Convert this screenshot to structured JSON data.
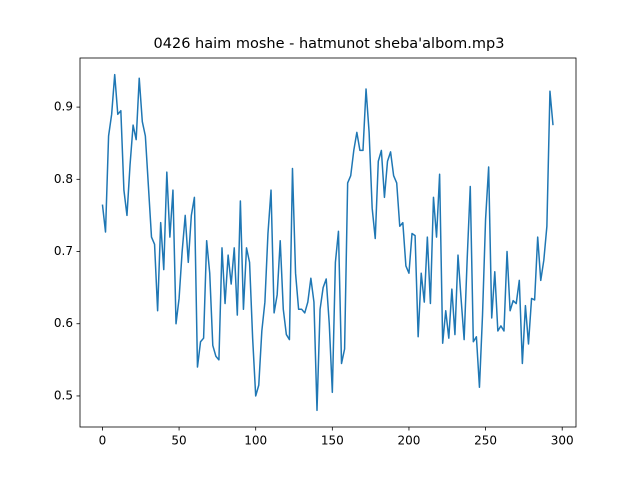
{
  "chart_data": {
    "type": "line",
    "title": "0426 haim moshe - hatmunot sheba'albom.mp3",
    "x": [
      0,
      2,
      4,
      6,
      8,
      10,
      12,
      14,
      16,
      18,
      20,
      22,
      24,
      26,
      28,
      30,
      32,
      34,
      36,
      38,
      40,
      42,
      44,
      46,
      48,
      50,
      52,
      54,
      56,
      58,
      60,
      62,
      64,
      66,
      68,
      70,
      72,
      74,
      76,
      78,
      80,
      82,
      84,
      86,
      88,
      90,
      92,
      94,
      96,
      98,
      100,
      102,
      104,
      106,
      108,
      110,
      112,
      114,
      116,
      118,
      120,
      122,
      124,
      126,
      128,
      130,
      132,
      134,
      136,
      138,
      140,
      142,
      144,
      146,
      148,
      150,
      152,
      154,
      156,
      158,
      160,
      162,
      164,
      166,
      168,
      170,
      172,
      174,
      176,
      178,
      180,
      182,
      184,
      186,
      188,
      190,
      192,
      194,
      196,
      198,
      200,
      202,
      204,
      206,
      208,
      210,
      212,
      214,
      216,
      218,
      220,
      222,
      224,
      226,
      228,
      230,
      232,
      234,
      236,
      238,
      240,
      242,
      244,
      246,
      248,
      250,
      252,
      254,
      256,
      258,
      260,
      262,
      264,
      266,
      268,
      270,
      272,
      274,
      276,
      278,
      280,
      282,
      284,
      286,
      288,
      290,
      292,
      294
    ],
    "series": [
      {
        "color": "#1f77b4",
        "values": [
          0.765,
          0.727,
          0.86,
          0.89,
          0.945,
          0.89,
          0.895,
          0.785,
          0.75,
          0.82,
          0.875,
          0.855,
          0.94,
          0.88,
          0.86,
          0.79,
          0.72,
          0.71,
          0.618,
          0.74,
          0.675,
          0.81,
          0.72,
          0.785,
          0.6,
          0.635,
          0.7,
          0.75,
          0.685,
          0.75,
          0.775,
          0.54,
          0.575,
          0.58,
          0.715,
          0.67,
          0.57,
          0.555,
          0.55,
          0.705,
          0.628,
          0.695,
          0.655,
          0.705,
          0.612,
          0.77,
          0.62,
          0.705,
          0.685,
          0.58,
          0.5,
          0.515,
          0.59,
          0.63,
          0.725,
          0.785,
          0.615,
          0.64,
          0.715,
          0.62,
          0.585,
          0.578,
          0.815,
          0.67,
          0.62,
          0.62,
          0.615,
          0.63,
          0.663,
          0.63,
          0.48,
          0.62,
          0.65,
          0.662,
          0.6,
          0.505,
          0.685,
          0.728,
          0.545,
          0.565,
          0.795,
          0.805,
          0.84,
          0.865,
          0.84,
          0.84,
          0.925,
          0.865,
          0.76,
          0.718,
          0.825,
          0.84,
          0.775,
          0.825,
          0.838,
          0.805,
          0.795,
          0.735,
          0.74,
          0.68,
          0.67,
          0.725,
          0.722,
          0.582,
          0.67,
          0.63,
          0.72,
          0.628,
          0.775,
          0.72,
          0.807,
          0.573,
          0.618,
          0.58,
          0.648,
          0.585,
          0.695,
          0.635,
          0.578,
          0.69,
          0.79,
          0.575,
          0.582,
          0.512,
          0.612,
          0.745,
          0.817,
          0.608,
          0.672,
          0.59,
          0.597,
          0.59,
          0.7,
          0.618,
          0.632,
          0.628,
          0.66,
          0.545,
          0.625,
          0.572,
          0.635,
          0.633,
          0.72,
          0.66,
          0.688,
          0.735,
          0.922,
          0.875
        ]
      }
    ],
    "xlim": [
      -14.65,
      309
    ],
    "ylim": [
      0.457,
      0.968
    ],
    "xticks": [
      0,
      50,
      100,
      150,
      200,
      250,
      300
    ],
    "yticks": [
      0.5,
      0.6,
      0.7,
      0.8,
      0.9
    ]
  }
}
